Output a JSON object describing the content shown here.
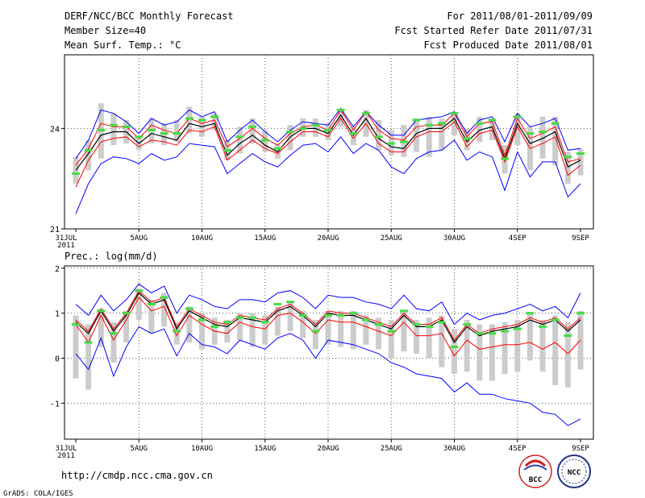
{
  "header": {
    "title": "DERF/NCC/BCC Monthly Forecast",
    "member_size": "Member Size=40",
    "variable": "Mean Surf. Temp.: °C",
    "period": "For 2011/08/01-2011/09/09",
    "started": "Fcst Started Refer Date 2011/07/31",
    "produced": "Fcst Produced Date 2011/08/01"
  },
  "footer": {
    "url": "http://cmdp.ncc.cma.gov.cn",
    "grads": "GrADS: COLA/IGES",
    "logo_left_text": "BCC",
    "logo_right_text": "NCC"
  },
  "colors": {
    "mean": "#000000",
    "ensemble_spread": "#ff0000",
    "min_max": "#0000ff",
    "observation": "#44dd44",
    "box": "#cccccc",
    "grid": "#555555"
  },
  "chart_data": [
    {
      "type": "line",
      "title": "Mean Surf. Temp.: °C",
      "xlabel": "",
      "ylabel": "",
      "ylim": [
        21,
        26.2
      ],
      "yticks": [
        "21",
        "24"
      ],
      "ytick_values": [
        21,
        24
      ],
      "xticks": [
        "31JUL\n2011",
        "5AUG",
        "10AUG",
        "15AUG",
        "20AUG",
        "25AUG",
        "30AUG",
        "4SEP",
        "9SEP"
      ],
      "xtick_days": [
        0,
        5,
        10,
        15,
        20,
        25,
        30,
        35,
        40
      ],
      "days": [
        0,
        1,
        2,
        3,
        4,
        5,
        6,
        7,
        8,
        9,
        10,
        11,
        12,
        13,
        14,
        15,
        16,
        17,
        18,
        19,
        20,
        21,
        22,
        23,
        24,
        25,
        26,
        27,
        28,
        29,
        30,
        31,
        32,
        33,
        34,
        35,
        36,
        37,
        38,
        39,
        40
      ],
      "series": [
        {
          "name": "mean",
          "values": [
            22.75,
            23.25,
            23.8,
            23.9,
            23.9,
            23.55,
            23.85,
            23.75,
            23.65,
            24.15,
            24.05,
            24.15,
            23.2,
            23.55,
            23.8,
            23.5,
            23.3,
            23.75,
            24.0,
            24.0,
            23.85,
            24.4,
            23.8,
            24.3,
            23.7,
            23.45,
            23.4,
            23.85,
            24.0,
            24.0,
            24.3,
            23.6,
            23.95,
            24.05,
            23.1,
            24.15,
            23.55,
            23.7,
            23.9,
            22.85,
            23.05
          ]
        },
        {
          "name": "ensemble_upper",
          "values": [
            22.9,
            23.4,
            24.15,
            24.05,
            24.05,
            23.7,
            24.1,
            23.95,
            23.85,
            24.3,
            24.15,
            24.25,
            23.45,
            23.7,
            24.0,
            23.7,
            23.5,
            23.85,
            24.05,
            24.1,
            23.95,
            24.55,
            23.95,
            24.5,
            23.95,
            23.7,
            23.65,
            24.05,
            24.1,
            24.1,
            24.45,
            23.75,
            24.15,
            24.2,
            23.2,
            24.3,
            23.7,
            23.85,
            24.05,
            23.0,
            23.1
          ]
        },
        {
          "name": "ensemble_lower",
          "values": [
            22.25,
            23.05,
            23.6,
            23.7,
            23.75,
            23.45,
            23.65,
            23.6,
            23.5,
            23.95,
            23.9,
            24.05,
            23.05,
            23.35,
            23.65,
            23.4,
            23.25,
            23.6,
            23.9,
            23.9,
            23.75,
            24.3,
            23.7,
            24.15,
            23.55,
            23.3,
            23.3,
            23.75,
            23.9,
            23.9,
            24.2,
            23.45,
            23.85,
            23.95,
            23.0,
            24.05,
            23.4,
            23.55,
            23.75,
            22.6,
            22.9
          ]
        },
        {
          "name": "ensemble_max",
          "values": [
            23.1,
            23.65,
            24.55,
            24.45,
            24.2,
            23.85,
            24.3,
            24.1,
            24.2,
            24.55,
            24.35,
            24.5,
            23.6,
            23.95,
            24.25,
            23.9,
            23.6,
            23.95,
            24.2,
            24.15,
            24.1,
            24.6,
            24.05,
            24.5,
            24.1,
            23.8,
            23.8,
            24.25,
            24.3,
            24.35,
            24.5,
            23.85,
            24.25,
            24.35,
            23.6,
            24.45,
            24.05,
            24.15,
            24.3,
            23.35,
            23.4
          ]
        },
        {
          "name": "ensemble_min",
          "values": [
            21.45,
            22.35,
            22.95,
            23.15,
            23.1,
            22.95,
            23.25,
            23.05,
            23.15,
            23.55,
            23.5,
            23.45,
            22.65,
            22.95,
            23.25,
            23.0,
            22.85,
            23.2,
            23.5,
            23.55,
            23.3,
            23.75,
            23.25,
            23.55,
            23.35,
            22.85,
            22.65,
            23.1,
            23.3,
            23.35,
            23.65,
            23.05,
            23.3,
            23.15,
            22.15,
            23.3,
            22.55,
            23.0,
            23.0,
            21.95,
            22.35
          ]
        },
        {
          "name": "observation",
          "values": [
            22.65,
            23.35,
            23.95,
            24.1,
            24.05,
            23.75,
            23.95,
            23.85,
            23.85,
            24.3,
            24.25,
            24.35,
            23.35,
            23.75,
            24.05,
            23.65,
            23.4,
            23.9,
            24.0,
            24.1,
            23.95,
            24.55,
            23.85,
            24.45,
            23.75,
            23.55,
            23.6,
            24.25,
            24.1,
            24.15,
            24.45,
            23.7,
            24.15,
            24.25,
            23.1,
            24.35,
            23.85,
            23.9,
            24.15,
            23.15,
            23.25
          ]
        },
        {
          "name": "box_top",
          "values": [
            23.15,
            23.65,
            24.75,
            24.45,
            24.25,
            23.75,
            24.3,
            24.15,
            24.25,
            24.65,
            24.35,
            24.45,
            23.65,
            24.05,
            24.3,
            23.95,
            23.55,
            24.1,
            24.3,
            24.3,
            24.15,
            24.55,
            24.05,
            24.55,
            24.25,
            23.95,
            24.1,
            24.3,
            24.35,
            24.3,
            24.5,
            24.0,
            24.35,
            24.3,
            23.5,
            24.45,
            24.05,
            24.35,
            24.35,
            23.3,
            23.4
          ]
        },
        {
          "name": "box_bottom",
          "values": [
            22.35,
            22.75,
            23.1,
            23.5,
            23.55,
            23.35,
            23.55,
            23.5,
            23.6,
            23.85,
            23.75,
            23.95,
            23.05,
            23.25,
            23.55,
            23.3,
            23.1,
            23.35,
            23.75,
            23.75,
            23.65,
            24.05,
            23.5,
            23.75,
            23.35,
            23.2,
            23.15,
            23.3,
            23.15,
            23.35,
            23.8,
            23.35,
            23.6,
            23.65,
            22.65,
            23.5,
            22.75,
            23.1,
            22.9,
            22.35,
            22.6
          ]
        }
      ]
    },
    {
      "type": "line",
      "title": "Prec.: log(mm/d)",
      "xlabel": "",
      "ylabel": "",
      "ylim": [
        -1.8,
        2.05
      ],
      "yticks": [
        "-1",
        "0",
        "1",
        "2"
      ],
      "ytick_values": [
        -1,
        0,
        1,
        2
      ],
      "xticks": [
        "31JUL\n2011",
        "5AUG",
        "10AUG",
        "15AUG",
        "20AUG",
        "25AUG",
        "30AUG",
        "4SEP",
        "9SEP"
      ],
      "xtick_days": [
        0,
        5,
        10,
        15,
        20,
        25,
        30,
        35,
        40
      ],
      "days": [
        0,
        1,
        2,
        3,
        4,
        5,
        6,
        7,
        8,
        9,
        10,
        11,
        12,
        13,
        14,
        15,
        16,
        17,
        18,
        19,
        20,
        21,
        22,
        23,
        24,
        25,
        26,
        27,
        28,
        29,
        30,
        31,
        32,
        33,
        34,
        35,
        36,
        37,
        38,
        39,
        40
      ],
      "series": [
        {
          "name": "mean",
          "values": [
            0.8,
            0.55,
            1.05,
            0.6,
            0.95,
            1.45,
            1.2,
            1.3,
            0.65,
            1.05,
            0.9,
            0.75,
            0.7,
            0.9,
            0.85,
            0.8,
            1.05,
            1.15,
            0.95,
            0.7,
            1.0,
            0.95,
            0.95,
            0.85,
            0.75,
            0.65,
            0.95,
            0.7,
            0.7,
            0.85,
            0.35,
            0.7,
            0.5,
            0.6,
            0.65,
            0.7,
            0.85,
            0.75,
            0.85,
            0.6,
            0.85
          ]
        },
        {
          "name": "ensemble_upper",
          "values": [
            0.85,
            0.6,
            1.1,
            0.65,
            1.0,
            1.5,
            1.25,
            1.35,
            0.7,
            1.1,
            0.95,
            0.8,
            0.75,
            0.95,
            0.9,
            0.85,
            1.1,
            1.2,
            1.0,
            0.75,
            1.05,
            1.0,
            1.0,
            0.9,
            0.8,
            0.7,
            1.0,
            0.75,
            0.75,
            0.9,
            0.4,
            0.75,
            0.55,
            0.65,
            0.7,
            0.75,
            0.9,
            0.8,
            0.9,
            0.65,
            0.9
          ]
        },
        {
          "name": "ensemble_lower",
          "values": [
            0.75,
            0.35,
            0.95,
            0.4,
            0.85,
            1.35,
            1.05,
            1.15,
            0.5,
            0.95,
            0.75,
            0.6,
            0.55,
            0.8,
            0.7,
            0.65,
            0.95,
            1.0,
            0.8,
            0.55,
            0.85,
            0.8,
            0.8,
            0.7,
            0.6,
            0.5,
            0.8,
            0.5,
            0.5,
            0.55,
            0.05,
            0.4,
            0.2,
            0.25,
            0.3,
            0.3,
            0.35,
            0.2,
            0.35,
            0.1,
            0.4
          ]
        },
        {
          "name": "ensemble_max",
          "values": [
            1.2,
            0.95,
            1.4,
            1.05,
            1.3,
            1.65,
            1.45,
            1.6,
            1.0,
            1.4,
            1.3,
            1.15,
            1.1,
            1.3,
            1.3,
            1.25,
            1.45,
            1.5,
            1.35,
            1.1,
            1.4,
            1.35,
            1.35,
            1.25,
            1.2,
            1.1,
            1.4,
            1.1,
            1.05,
            1.25,
            0.75,
            1.0,
            0.85,
            0.95,
            1.0,
            1.1,
            1.2,
            1.05,
            1.15,
            0.9,
            1.45
          ]
        },
        {
          "name": "ensemble_min",
          "values": [
            0.1,
            -0.25,
            0.45,
            -0.4,
            0.25,
            0.7,
            0.55,
            0.65,
            0.05,
            0.55,
            0.3,
            0.25,
            0.1,
            0.4,
            0.3,
            0.2,
            0.45,
            0.55,
            0.4,
            0.0,
            0.4,
            0.35,
            0.3,
            0.2,
            0.1,
            -0.1,
            -0.2,
            -0.35,
            -0.4,
            -0.45,
            -0.75,
            -0.55,
            -0.8,
            -0.8,
            -0.9,
            -0.95,
            -1.0,
            -1.2,
            -1.25,
            -1.5,
            -1.35
          ]
        },
        {
          "name": "observation",
          "values": [
            0.75,
            0.35,
            1.05,
            0.55,
            1.0,
            1.5,
            1.2,
            1.35,
            0.6,
            1.1,
            0.85,
            0.7,
            0.8,
            0.9,
            0.9,
            0.8,
            1.2,
            1.25,
            0.95,
            0.6,
            0.95,
            0.95,
            1.0,
            0.85,
            0.75,
            0.6,
            1.05,
            0.75,
            0.7,
            0.8,
            0.25,
            0.75,
            0.55,
            0.55,
            0.6,
            0.65,
            1.0,
            0.7,
            0.85,
            0.5,
            1.0
          ]
        },
        {
          "name": "box_top",
          "values": [
            0.95,
            0.75,
            1.1,
            0.8,
            1.05,
            1.55,
            1.3,
            1.45,
            0.8,
            1.15,
            1.0,
            0.9,
            0.85,
            1.0,
            1.0,
            0.95,
            1.15,
            1.25,
            1.05,
            0.85,
            1.05,
            1.05,
            1.05,
            0.95,
            0.9,
            0.85,
            1.05,
            0.85,
            0.9,
            0.95,
            0.65,
            0.85,
            0.75,
            0.75,
            0.8,
            0.85,
            1.0,
            0.85,
            0.95,
            0.8,
            1.05
          ]
        },
        {
          "name": "box_bottom",
          "values": [
            -0.45,
            -0.7,
            0.25,
            -0.1,
            0.35,
            0.85,
            0.55,
            0.7,
            0.3,
            0.35,
            0.2,
            0.3,
            0.35,
            0.4,
            0.25,
            0.3,
            0.5,
            0.6,
            0.45,
            0.2,
            0.3,
            0.25,
            0.2,
            0.3,
            0.2,
            0.0,
            0.15,
            0.1,
            0.0,
            -0.2,
            -0.35,
            -0.3,
            -0.5,
            -0.5,
            -0.35,
            -0.3,
            -0.05,
            -0.3,
            -0.6,
            -0.65,
            -0.25
          ]
        }
      ]
    }
  ]
}
